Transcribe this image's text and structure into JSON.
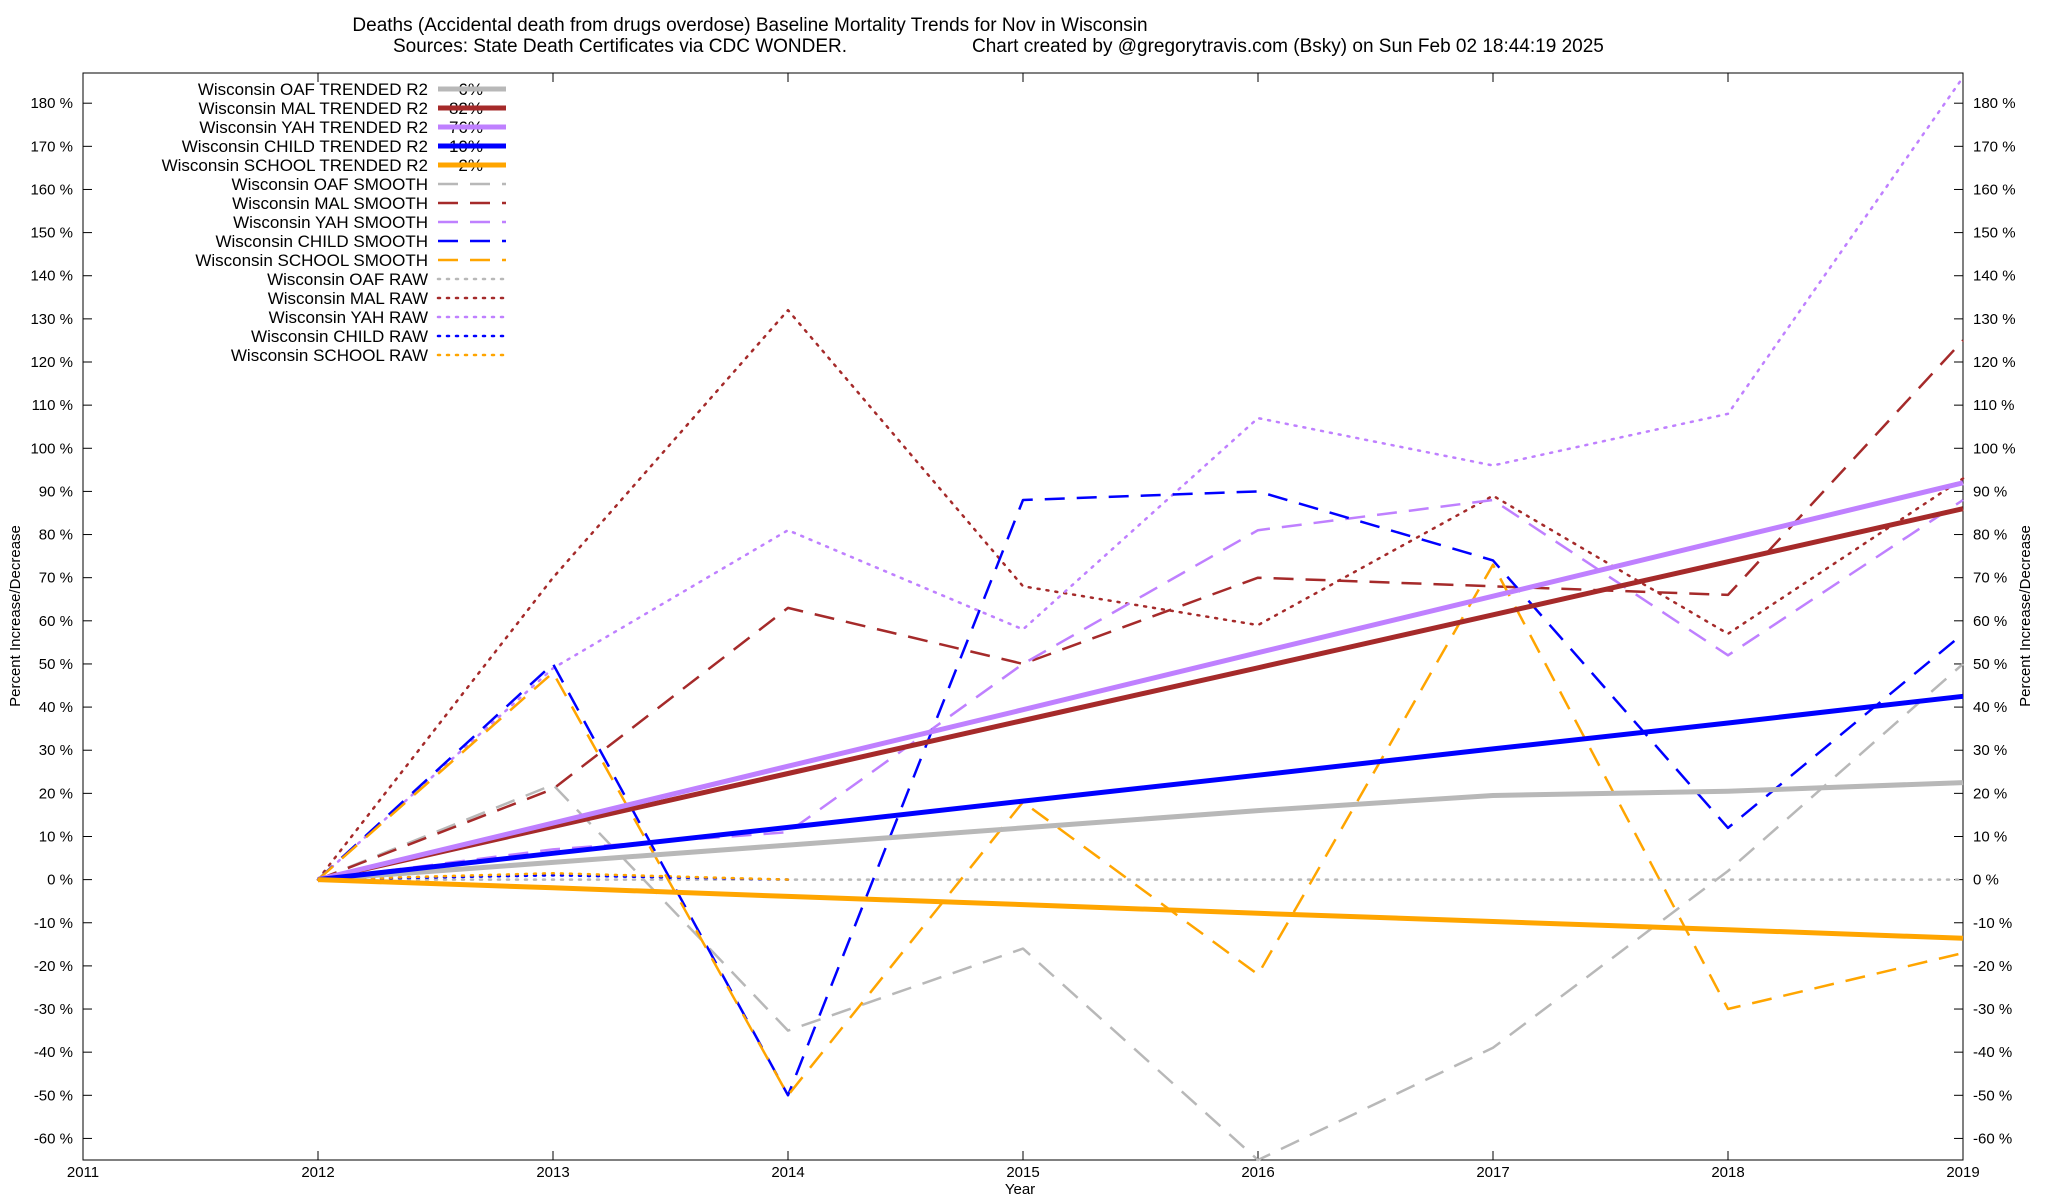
{
  "chart_data": {
    "type": "line",
    "title": "Deaths (Accidental death from drugs overdose)  Baseline Mortality Trends for Nov in Wisconsin",
    "subtitle_left": "Sources: State Death Certificates via CDC WONDER.",
    "subtitle_right": "Chart created by @gregorytravis.com (Bsky) on Sun Feb 02 18:44:19 2025",
    "xlabel": "Year",
    "ylabel_left": "Percent Increase/Decrease",
    "ylabel_right": "Percent Increase/Decrease",
    "xlim": [
      2011,
      2019
    ],
    "ylim": [
      -65,
      187
    ],
    "x_ticks": [
      2011,
      2012,
      2013,
      2014,
      2015,
      2016,
      2017,
      2018,
      2019
    ],
    "x_tick_labels": [
      "2011",
      "2012",
      "2013",
      "2014",
      "2015",
      "2016",
      "2017",
      "2018",
      "2019"
    ],
    "y_ticks": [
      -60,
      -50,
      -40,
      -30,
      -20,
      -10,
      0,
      10,
      20,
      30,
      40,
      50,
      60,
      70,
      80,
      90,
      100,
      110,
      120,
      130,
      140,
      150,
      160,
      170,
      180
    ],
    "y_tick_labels": [
      "-60 %",
      "-50 %",
      "-40 %",
      "-30 %",
      "-20 %",
      "-10 %",
      "0 %",
      "10 %",
      "20 %",
      "30 %",
      "40 %",
      "50 %",
      "60 %",
      "70 %",
      "80 %",
      "90 %",
      "100 %",
      "110 %",
      "120 %",
      "130 %",
      "140 %",
      "150 %",
      "160 %",
      "170 %",
      "180 %"
    ],
    "grid": false,
    "legend_position": "top-left",
    "x": [
      2012,
      2013,
      2014,
      2015,
      2016,
      2017,
      2018,
      2019
    ],
    "series": [
      {
        "name": "Wisconsin OAF TRENDED R2",
        "r2": "6%",
        "style": "solid",
        "color": "#b8b8b8",
        "values": [
          0,
          4,
          8,
          12,
          16,
          19.5,
          20.5,
          22.5
        ]
      },
      {
        "name": "Wisconsin MAL TRENDED R2",
        "r2": "82%",
        "style": "solid",
        "color": "#a52a2a",
        "values": [
          0,
          12.3,
          24.6,
          36.9,
          49.1,
          61.4,
          73.7,
          86
        ]
      },
      {
        "name": "Wisconsin YAH TRENDED R2",
        "r2": "76%",
        "style": "solid",
        "color": "#bf80ff",
        "values": [
          0,
          13.1,
          26.3,
          39.4,
          52.6,
          65.7,
          78.9,
          92
        ]
      },
      {
        "name": "Wisconsin CHILD TRENDED R2",
        "r2": "10%",
        "style": "solid",
        "color": "#0000ff",
        "values": [
          0,
          6.1,
          12.1,
          18.2,
          24.2,
          30.3,
          36.3,
          42.5
        ]
      },
      {
        "name": "Wisconsin SCHOOL TRENDED R2",
        "r2": "2%",
        "style": "solid",
        "color": "#ffa500",
        "values": [
          0,
          -1.9,
          -3.9,
          -5.8,
          -7.8,
          -9.7,
          -11.6,
          -13.6
        ]
      },
      {
        "name": "Wisconsin OAF SMOOTH",
        "r2": "",
        "style": "dashed",
        "color": "#b8b8b8",
        "values": [
          0,
          22,
          -35,
          -16,
          -65,
          -39,
          2,
          50
        ]
      },
      {
        "name": "Wisconsin MAL SMOOTH",
        "r2": "",
        "style": "dashed",
        "color": "#a52a2a",
        "values": [
          0,
          21,
          63,
          50,
          70,
          68,
          66,
          125
        ]
      },
      {
        "name": "Wisconsin YAH SMOOTH",
        "r2": "",
        "style": "dashed",
        "color": "#bf80ff",
        "values": [
          0,
          7,
          11,
          50,
          81,
          88,
          52,
          88
        ]
      },
      {
        "name": "Wisconsin CHILD SMOOTH",
        "r2": "",
        "style": "dashed",
        "color": "#0000ff",
        "values": [
          0,
          50,
          -50,
          88,
          90,
          74,
          12,
          57
        ]
      },
      {
        "name": "Wisconsin SCHOOL SMOOTH",
        "r2": "",
        "style": "dashed",
        "color": "#ffa500",
        "values": [
          0,
          48,
          -50,
          18,
          -22,
          73,
          -30,
          -17
        ]
      },
      {
        "name": "Wisconsin OAF RAW",
        "r2": "",
        "style": "dotted",
        "color": "#b8b8b8",
        "values": [
          0,
          0,
          0,
          0,
          0,
          0,
          0,
          0
        ]
      },
      {
        "name": "Wisconsin MAL RAW",
        "r2": "",
        "style": "dotted",
        "color": "#a52a2a",
        "values": [
          0,
          70,
          132,
          68,
          59,
          89,
          57,
          93
        ]
      },
      {
        "name": "Wisconsin YAH RAW",
        "r2": "",
        "style": "dotted",
        "color": "#bf80ff",
        "values": [
          0,
          49,
          81,
          58,
          107,
          96,
          108,
          186
        ]
      },
      {
        "name": "Wisconsin CHILD RAW",
        "r2": "",
        "style": "dotted",
        "color": "#0000ff",
        "x": [
          2012,
          2013,
          2014
        ],
        "values": [
          0,
          1,
          0
        ]
      },
      {
        "name": "Wisconsin SCHOOL RAW",
        "r2": "",
        "style": "dotted",
        "color": "#ffa500",
        "x": [
          2012,
          2013,
          2014
        ],
        "values": [
          0,
          1.5,
          0
        ]
      }
    ]
  }
}
